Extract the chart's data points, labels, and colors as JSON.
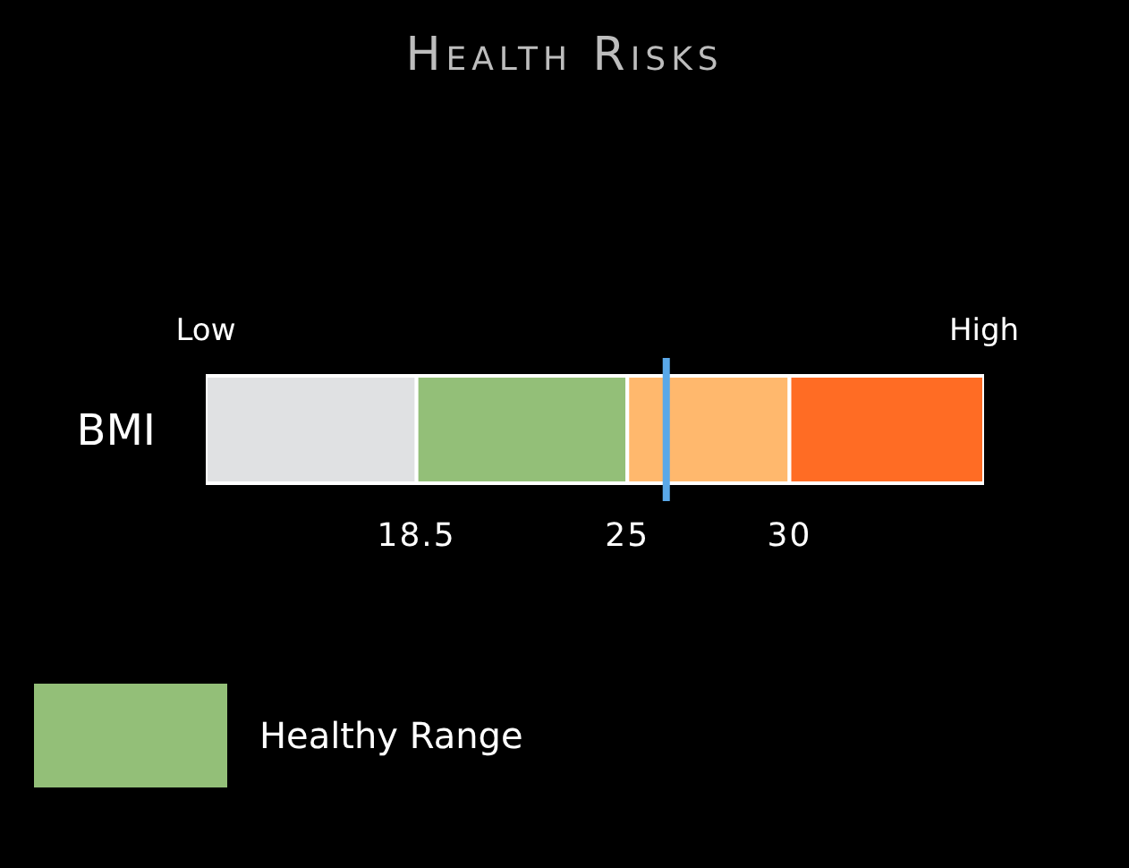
{
  "chart_data": {
    "type": "bar",
    "title": "Health Risks",
    "orientation": "horizontal",
    "categories": [
      "BMI"
    ],
    "series": [
      {
        "color": "#e0e1e3",
        "base": [
          12
        ],
        "values": [
          6.5
        ]
      },
      {
        "name": "Healthy Range",
        "color": "#93bf78",
        "base": [
          18.5
        ],
        "values": [
          6.5
        ]
      },
      {
        "color": "#ffb86d",
        "base": [
          25
        ],
        "values": [
          5
        ]
      },
      {
        "color": "#ff6c24",
        "base": [
          30
        ],
        "values": [
          6
        ]
      }
    ],
    "xlim": [
      12,
      36
    ],
    "xticks": [
      18.5,
      25,
      30
    ],
    "annotations": [
      "Low",
      "High"
    ],
    "ref_lines": [
      {
        "axis": "x",
        "value": 26.2,
        "color": "#5aa8e8"
      }
    ],
    "grid": false,
    "legend": "bottom left"
  }
}
